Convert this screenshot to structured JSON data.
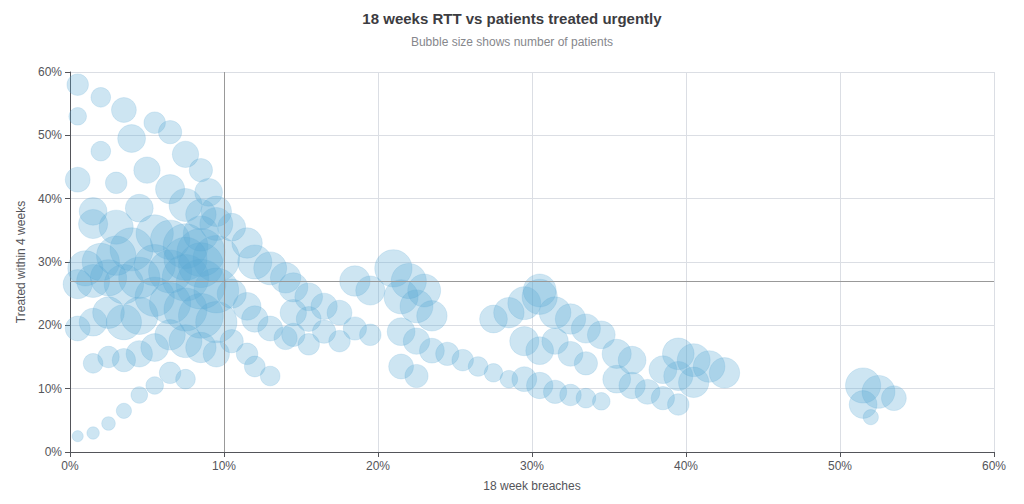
{
  "chart_data": {
    "type": "scatter",
    "title": "18 weeks RTT vs patients treated urgently",
    "subtitle": "Bubble size shows number of patients",
    "xlabel": "18 week breaches",
    "ylabel": "Treated within 4 weeks",
    "xlim": [
      0,
      0.6
    ],
    "ylim": [
      0,
      0.6
    ],
    "xticks": [
      {
        "value": 0,
        "label": "0%"
      },
      {
        "value": 0.1,
        "label": "10%"
      },
      {
        "value": 0.2,
        "label": "20%"
      },
      {
        "value": 0.3,
        "label": "30%"
      },
      {
        "value": 0.4,
        "label": "40%"
      },
      {
        "value": 0.5,
        "label": "50%"
      },
      {
        "value": 0.6,
        "label": "60%"
      }
    ],
    "yticks": [
      {
        "value": 0,
        "label": "0%"
      },
      {
        "value": 0.1,
        "label": "10%"
      },
      {
        "value": 0.2,
        "label": "20%"
      },
      {
        "value": 0.3,
        "label": "30%"
      },
      {
        "value": 0.4,
        "label": "40%"
      },
      {
        "value": 0.5,
        "label": "50%"
      },
      {
        "value": 0.6,
        "label": "60%"
      }
    ],
    "grid": true,
    "color": "#5ba8d4",
    "reference_lines": {
      "x": 0.1,
      "y": 0.265
    },
    "x": [
      0.005,
      0.02,
      0.005,
      0.035,
      0.055,
      0.04,
      0.065,
      0.02,
      0.075,
      0.085,
      0.05,
      0.03,
      0.065,
      0.09,
      0.075,
      0.045,
      0.085,
      0.015,
      0.03,
      0.055,
      0.065,
      0.075,
      0.085,
      0.095,
      0.04,
      0.03,
      0.02,
      0.01,
      0.055,
      0.065,
      0.075,
      0.085,
      0.095,
      0.045,
      0.035,
      0.025,
      0.015,
      0.005,
      0.055,
      0.065,
      0.075,
      0.085,
      0.095,
      0.045,
      0.035,
      0.025,
      0.015,
      0.005,
      0.065,
      0.075,
      0.085,
      0.055,
      0.045,
      0.035,
      0.095,
      0.025,
      0.015,
      0.065,
      0.075,
      0.055,
      0.045,
      0.035,
      0.025,
      0.015,
      0.005,
      0.005,
      0.015,
      0.085,
      0.095,
      0.095,
      0.075,
      0.085,
      0.105,
      0.115,
      0.12,
      0.13,
      0.14,
      0.105,
      0.115,
      0.12,
      0.13,
      0.14,
      0.105,
      0.115,
      0.12,
      0.13,
      0.145,
      0.155,
      0.145,
      0.155,
      0.145,
      0.155,
      0.165,
      0.175,
      0.185,
      0.195,
      0.165,
      0.175,
      0.185,
      0.195,
      0.21,
      0.22,
      0.23,
      0.215,
      0.225,
      0.235,
      0.215,
      0.225,
      0.235,
      0.245,
      0.255,
      0.265,
      0.275,
      0.285,
      0.215,
      0.225,
      0.275,
      0.285,
      0.295,
      0.305,
      0.295,
      0.305,
      0.295,
      0.305,
      0.315,
      0.325,
      0.335,
      0.345,
      0.315,
      0.325,
      0.335,
      0.355,
      0.365,
      0.375,
      0.355,
      0.365,
      0.305,
      0.315,
      0.325,
      0.335,
      0.345,
      0.385,
      0.395,
      0.385,
      0.395,
      0.405,
      0.395,
      0.405,
      0.415,
      0.425,
      0.515,
      0.525,
      0.535,
      0.515,
      0.52
    ],
    "values": [
      0.58,
      0.56,
      0.53,
      0.54,
      0.52,
      0.495,
      0.505,
      0.475,
      0.47,
      0.445,
      0.445,
      0.425,
      0.415,
      0.41,
      0.39,
      0.385,
      0.375,
      0.36,
      0.355,
      0.345,
      0.335,
      0.325,
      0.315,
      0.305,
      0.32,
      0.31,
      0.3,
      0.29,
      0.295,
      0.285,
      0.275,
      0.265,
      0.255,
      0.275,
      0.265,
      0.275,
      0.27,
      0.265,
      0.245,
      0.235,
      0.225,
      0.215,
      0.205,
      0.215,
      0.205,
      0.22,
      0.205,
      0.195,
      0.185,
      0.175,
      0.165,
      0.165,
      0.155,
      0.145,
      0.155,
      0.15,
      0.14,
      0.125,
      0.115,
      0.105,
      0.09,
      0.065,
      0.045,
      0.03,
      0.025,
      0.43,
      0.38,
      0.345,
      0.36,
      0.38,
      0.305,
      0.295,
      0.355,
      0.33,
      0.3,
      0.29,
      0.275,
      0.25,
      0.23,
      0.21,
      0.195,
      0.18,
      0.175,
      0.155,
      0.135,
      0.12,
      0.26,
      0.245,
      0.22,
      0.21,
      0.185,
      0.17,
      0.23,
      0.22,
      0.27,
      0.255,
      0.19,
      0.175,
      0.195,
      0.185,
      0.29,
      0.27,
      0.255,
      0.245,
      0.23,
      0.215,
      0.19,
      0.175,
      0.16,
      0.155,
      0.145,
      0.135,
      0.125,
      0.115,
      0.135,
      0.12,
      0.21,
      0.22,
      0.235,
      0.245,
      0.175,
      0.16,
      0.115,
      0.105,
      0.095,
      0.09,
      0.085,
      0.08,
      0.175,
      0.155,
      0.14,
      0.115,
      0.105,
      0.095,
      0.155,
      0.145,
      0.255,
      0.22,
      0.21,
      0.195,
      0.185,
      0.085,
      0.075,
      0.13,
      0.12,
      0.11,
      0.155,
      0.145,
      0.135,
      0.125,
      0.105,
      0.095,
      0.085,
      0.075,
      0.055
    ],
    "sizes": [
      3000,
      2500,
      2000,
      4000,
      3000,
      5000,
      3500,
      2500,
      4500,
      3500,
      4500,
      3000,
      5500,
      5000,
      7000,
      5000,
      6000,
      5500,
      7500,
      9000,
      10000,
      13000,
      15000,
      14000,
      12000,
      10000,
      9000,
      8000,
      11000,
      12000,
      14000,
      16000,
      13000,
      11000,
      10000,
      8500,
      7000,
      5500,
      10000,
      11000,
      12000,
      13000,
      11000,
      9000,
      8000,
      6500,
      5000,
      4000,
      6000,
      7000,
      6000,
      5000,
      4500,
      3500,
      4500,
      3000,
      2500,
      3000,
      2500,
      2000,
      1800,
      1500,
      1200,
      1000,
      800,
      4000,
      5000,
      8000,
      7000,
      6000,
      12000,
      13000,
      5000,
      6000,
      7500,
      7000,
      6000,
      5500,
      5000,
      4500,
      4000,
      3500,
      3500,
      3000,
      2800,
      2500,
      5500,
      5000,
      4500,
      4000,
      3500,
      3000,
      4500,
      4000,
      6000,
      5500,
      3500,
      3000,
      3500,
      3000,
      9000,
      8000,
      7000,
      7500,
      7000,
      6000,
      5000,
      4500,
      4000,
      3500,
      3000,
      2500,
      2200,
      2000,
      4000,
      3500,
      5000,
      6000,
      7000,
      8000,
      5500,
      5000,
      4000,
      4500,
      3500,
      3000,
      2500,
      2000,
      4500,
      4000,
      3500,
      5000,
      4500,
      4000,
      5500,
      5000,
      7000,
      6500,
      6000,
      5500,
      5000,
      3500,
      3000,
      5000,
      5500,
      6000,
      6500,
      7000,
      6500,
      6000,
      8000,
      7000,
      4000,
      5000,
      1500
    ]
  }
}
